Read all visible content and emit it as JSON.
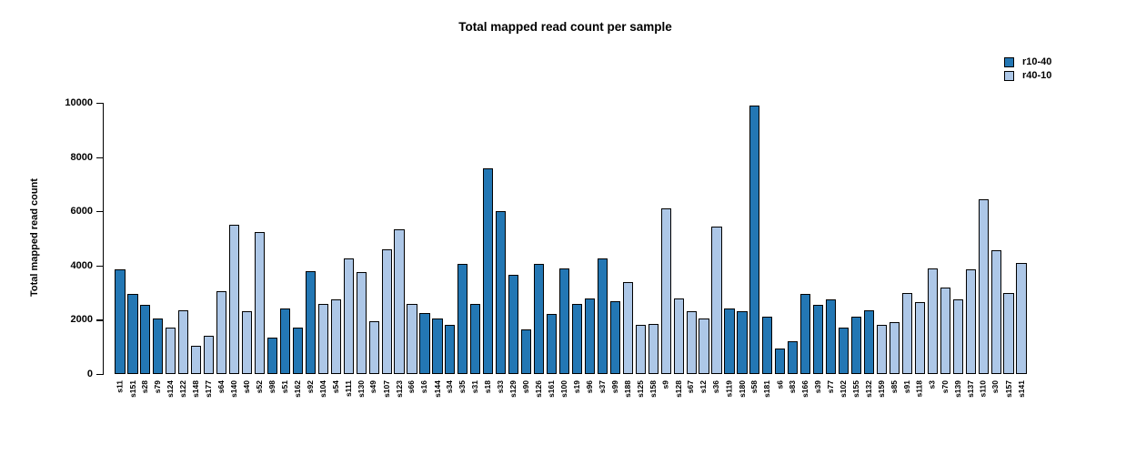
{
  "title": "Total mapped read count per sample",
  "y_axis": {
    "label": "Total mapped read count"
  },
  "legend": {
    "items": [
      {
        "label": "r10-40",
        "color": "#2377b4"
      },
      {
        "label": "r40-10",
        "color": "#adc7e7"
      }
    ]
  },
  "chart_data": {
    "type": "bar",
    "title": "Total mapped read count per sample",
    "xlabel": "",
    "ylabel": "Total mapped read count",
    "ylim": [
      0,
      10000
    ],
    "yticks": [
      0,
      2000,
      4000,
      6000,
      8000,
      10000
    ],
    "grid": false,
    "legend_position": "top-right",
    "series_colors": {
      "r10-40": "#2377b4",
      "r40-10": "#adc7e7"
    },
    "categories": [
      "s11",
      "s151",
      "s28",
      "s79",
      "s124",
      "s122",
      "s148",
      "s177",
      "s64",
      "s140",
      "s40",
      "s52",
      "s98",
      "s51",
      "s162",
      "s92",
      "s104",
      "s54",
      "s111",
      "s130",
      "s49",
      "s107",
      "s123",
      "s66",
      "s16",
      "s144",
      "s34",
      "s35",
      "s31",
      "s18",
      "s33",
      "s129",
      "s90",
      "s126",
      "s161",
      "s100",
      "s19",
      "s96",
      "s37",
      "s99",
      "s188",
      "s125",
      "s158",
      "s9",
      "s128",
      "s67",
      "s12",
      "s36",
      "s119",
      "s180",
      "s58",
      "s181",
      "s6",
      "s83",
      "s166",
      "s39",
      "s77",
      "s102",
      "s155",
      "s132",
      "s159",
      "s85",
      "s91",
      "s118",
      "s3",
      "s70",
      "s139",
      "s137",
      "s110",
      "s30",
      "s157",
      "s141"
    ],
    "groups": [
      "r10-40",
      "r10-40",
      "r10-40",
      "r10-40",
      "r40-10",
      "r40-10",
      "r40-10",
      "r40-10",
      "r40-10",
      "r40-10",
      "r40-10",
      "r40-10",
      "r10-40",
      "r10-40",
      "r10-40",
      "r10-40",
      "r40-10",
      "r40-10",
      "r40-10",
      "r40-10",
      "r40-10",
      "r40-10",
      "r40-10",
      "r40-10",
      "r10-40",
      "r10-40",
      "r10-40",
      "r10-40",
      "r10-40",
      "r10-40",
      "r10-40",
      "r10-40",
      "r10-40",
      "r10-40",
      "r10-40",
      "r10-40",
      "r10-40",
      "r10-40",
      "r10-40",
      "r10-40",
      "r40-10",
      "r40-10",
      "r40-10",
      "r40-10",
      "r40-10",
      "r40-10",
      "r40-10",
      "r40-10",
      "r10-40",
      "r10-40",
      "r10-40",
      "r10-40",
      "r10-40",
      "r10-40",
      "r10-40",
      "r10-40",
      "r10-40",
      "r10-40",
      "r10-40",
      "r10-40",
      "r40-10",
      "r40-10",
      "r40-10",
      "r40-10",
      "r40-10",
      "r40-10",
      "r40-10",
      "r40-10",
      "r40-10",
      "r40-10",
      "r40-10",
      "r40-10"
    ],
    "values": [
      3850,
      2950,
      2550,
      2050,
      1700,
      2350,
      1050,
      1400,
      3050,
      5500,
      2300,
      5250,
      1350,
      2400,
      1700,
      3800,
      2600,
      2750,
      4250,
      3750,
      1950,
      4600,
      5350,
      2600,
      2250,
      2050,
      1800,
      4050,
      2600,
      7600,
      6000,
      3650,
      1650,
      4050,
      2200,
      3900,
      2600,
      2800,
      4250,
      2700,
      3400,
      1800,
      1850,
      6100,
      2800,
      2300,
      2050,
      5450,
      2400,
      2300,
      9900,
      2100,
      950,
      1200,
      2950,
      2550,
      2750,
      1700,
      2100,
      2350,
      1800,
      1900,
      3000,
      2650,
      3900,
      3200,
      2750,
      3850,
      6450,
      4550,
      3000,
      4100
    ]
  }
}
